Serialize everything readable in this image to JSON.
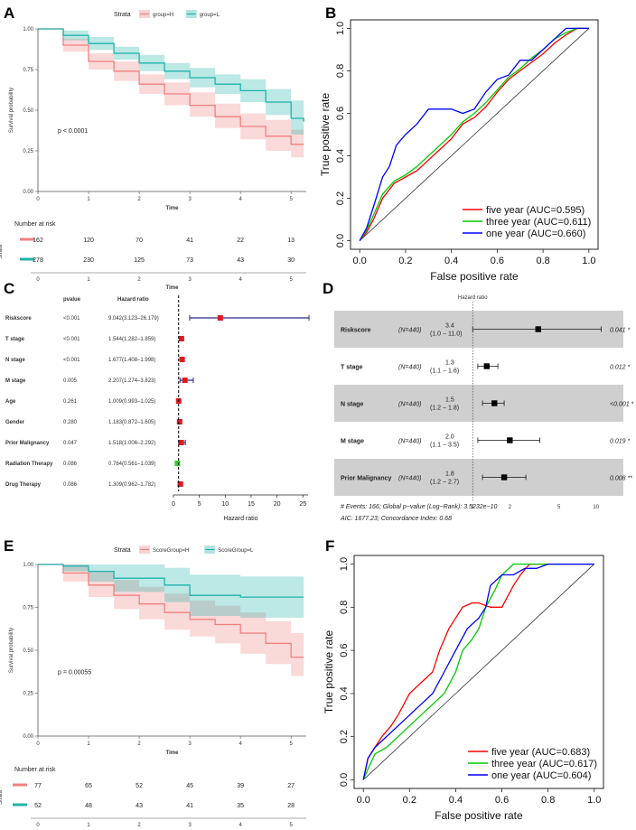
{
  "panels": {
    "A": "A",
    "B": "B",
    "C": "C",
    "D": "D",
    "E": "E",
    "F": "F"
  },
  "chart_data": [
    {
      "id": "A",
      "type": "line",
      "subtype": "kaplan-meier",
      "legend_title": "Strata",
      "series": [
        {
          "name": "group=H",
          "color": "#f08080",
          "x": [
            0,
            0.5,
            1,
            1.5,
            2,
            2.5,
            3,
            3.5,
            4,
            4.5,
            5,
            5.25
          ],
          "y": [
            1.0,
            0.9,
            0.8,
            0.74,
            0.66,
            0.6,
            0.53,
            0.46,
            0.4,
            0.34,
            0.29,
            0.29
          ],
          "ci_low": [
            1.0,
            0.86,
            0.75,
            0.68,
            0.6,
            0.53,
            0.46,
            0.39,
            0.32,
            0.25,
            0.21,
            0.21
          ],
          "ci_high": [
            1.0,
            0.94,
            0.85,
            0.8,
            0.72,
            0.67,
            0.61,
            0.54,
            0.48,
            0.44,
            0.38,
            0.38
          ]
        },
        {
          "name": "group=L",
          "color": "#20b2aa",
          "x": [
            0,
            0.5,
            1,
            1.5,
            2,
            2.5,
            3,
            3.5,
            4,
            4.5,
            5,
            5.25
          ],
          "y": [
            1.0,
            0.96,
            0.91,
            0.85,
            0.79,
            0.74,
            0.7,
            0.66,
            0.62,
            0.55,
            0.45,
            0.43
          ],
          "ci_low": [
            1.0,
            0.93,
            0.87,
            0.81,
            0.74,
            0.69,
            0.64,
            0.6,
            0.55,
            0.47,
            0.35,
            0.33
          ],
          "ci_high": [
            1.0,
            0.99,
            0.95,
            0.89,
            0.84,
            0.79,
            0.76,
            0.72,
            0.69,
            0.63,
            0.56,
            0.53
          ]
        }
      ],
      "xlabel": "Time",
      "ylabel": "Survival probability",
      "xticks": [
        "0",
        "1",
        "2",
        "3",
        "4",
        "5"
      ],
      "yticks": [
        "0.00",
        "0.25",
        "0.50",
        "0.75",
        "1.00"
      ],
      "xlim": [
        0,
        5.3
      ],
      "ylim": [
        0,
        1
      ],
      "pvalue": "p < 0.0001",
      "risk_title": "Number at risk",
      "risk_ylabel": "Strata",
      "risk_rows": [
        [
          "162",
          "120",
          "70",
          "41",
          "22",
          "13"
        ],
        [
          "278",
          "230",
          "125",
          "73",
          "43",
          "30"
        ]
      ],
      "risk_xticks": [
        "0",
        "1",
        "2",
        "3",
        "4",
        "5"
      ],
      "risk_xlabel": "Time"
    },
    {
      "id": "B",
      "type": "line",
      "subtype": "roc",
      "xlabel": "False positive rate",
      "ylabel": "True positive rate",
      "xticks": [
        "0.0",
        "0.2",
        "0.4",
        "0.6",
        "0.8",
        "1.0"
      ],
      "yticks": [
        "0.0",
        "0.2",
        "0.4",
        "0.6",
        "0.8",
        "1.0"
      ],
      "xlim": [
        0,
        1
      ],
      "ylim": [
        0,
        1
      ],
      "series": [
        {
          "name": "five year (AUC=0.595)",
          "color": "#ff0000",
          "x": [
            0,
            0.03,
            0.06,
            0.1,
            0.15,
            0.2,
            0.25,
            0.3,
            0.35,
            0.4,
            0.45,
            0.5,
            0.55,
            0.6,
            0.65,
            0.7,
            0.75,
            0.8,
            0.85,
            0.9,
            0.95,
            1.0
          ],
          "y": [
            0,
            0.04,
            0.1,
            0.2,
            0.27,
            0.3,
            0.33,
            0.38,
            0.43,
            0.48,
            0.55,
            0.58,
            0.63,
            0.7,
            0.76,
            0.8,
            0.84,
            0.88,
            0.93,
            0.97,
            1.0,
            1.0
          ]
        },
        {
          "name": "three year (AUC=0.611)",
          "color": "#00cc00",
          "x": [
            0,
            0.03,
            0.06,
            0.1,
            0.15,
            0.2,
            0.25,
            0.3,
            0.35,
            0.4,
            0.45,
            0.5,
            0.55,
            0.6,
            0.65,
            0.7,
            0.75,
            0.8,
            0.85,
            0.9,
            0.95,
            1.0
          ],
          "y": [
            0,
            0.05,
            0.12,
            0.22,
            0.28,
            0.31,
            0.35,
            0.4,
            0.45,
            0.5,
            0.56,
            0.6,
            0.65,
            0.71,
            0.77,
            0.81,
            0.86,
            0.9,
            0.95,
            0.98,
            1.0,
            1.0
          ]
        },
        {
          "name": "one year (AUC=0.660)",
          "color": "#0000ff",
          "x": [
            0,
            0.03,
            0.06,
            0.1,
            0.13,
            0.16,
            0.2,
            0.25,
            0.3,
            0.35,
            0.4,
            0.45,
            0.5,
            0.55,
            0.6,
            0.65,
            0.7,
            0.75,
            0.8,
            0.85,
            0.9,
            0.95,
            1.0
          ],
          "y": [
            0,
            0.06,
            0.16,
            0.3,
            0.35,
            0.45,
            0.5,
            0.55,
            0.62,
            0.62,
            0.62,
            0.6,
            0.62,
            0.7,
            0.76,
            0.78,
            0.85,
            0.85,
            0.9,
            0.95,
            1.0,
            1.0,
            1.0
          ]
        }
      ]
    },
    {
      "id": "C",
      "type": "forest",
      "col_pvalue": "pvalue",
      "col_hr": "Hazard ratio",
      "xlabel": "Hazard ratio",
      "xticks": [
        0,
        5,
        10,
        15,
        20,
        25
      ],
      "xlim": [
        0,
        26
      ],
      "ref_line": 1,
      "rows": [
        {
          "label": "Riskscore",
          "pvalue": "<0.001",
          "hr_text": "9.042(3.123–26.179)",
          "hr": 9.042,
          "lo": 3.123,
          "hi": 26.179,
          "color": "#e31a1c"
        },
        {
          "label": "T stage",
          "pvalue": "<0.001",
          "hr_text": "1.544(1.282–1.859)",
          "hr": 1.544,
          "lo": 1.282,
          "hi": 1.859,
          "color": "#e31a1c"
        },
        {
          "label": "N stage",
          "pvalue": "<0.001",
          "hr_text": "1.677(1.408–1.998)",
          "hr": 1.677,
          "lo": 1.408,
          "hi": 1.998,
          "color": "#e31a1c"
        },
        {
          "label": "M stage",
          "pvalue": "0.005",
          "hr_text": "2.207(1.274–3.823)",
          "hr": 2.207,
          "lo": 1.274,
          "hi": 3.823,
          "color": "#e31a1c"
        },
        {
          "label": "Age",
          "pvalue": "0.261",
          "hr_text": "1.009(0.993–1.025)",
          "hr": 1.009,
          "lo": 0.993,
          "hi": 1.025,
          "color": "#e31a1c"
        },
        {
          "label": "Gender",
          "pvalue": "0.280",
          "hr_text": "1.183(0.872–1.605)",
          "hr": 1.183,
          "lo": 0.872,
          "hi": 1.605,
          "color": "#e31a1c"
        },
        {
          "label": "Prior Malignancy",
          "pvalue": "0.047",
          "hr_text": "1.518(1.006–2.292)",
          "hr": 1.518,
          "lo": 1.006,
          "hi": 2.292,
          "color": "#e31a1c"
        },
        {
          "label": "Radiation Therapy",
          "pvalue": "0.086",
          "hr_text": "0.764(0.561–1.039)",
          "hr": 0.764,
          "lo": 0.561,
          "hi": 1.039,
          "color": "#33cc33"
        },
        {
          "label": "Drug Therapy",
          "pvalue": "0.086",
          "hr_text": "1.309(0.962–1.782)",
          "hr": 1.309,
          "lo": 0.962,
          "hi": 1.782,
          "color": "#e31a1c"
        }
      ]
    },
    {
      "id": "D",
      "type": "forest",
      "scale": "log",
      "title": "Hazard ratio",
      "xticks": [
        "1",
        "2",
        "5",
        "10"
      ],
      "rows": [
        {
          "label": "Riskscore",
          "n": "(N=440)",
          "hr_main": "3.4",
          "hr_ci": "(1.0 − 11.0)",
          "hr": 3.4,
          "lo": 1.0,
          "hi": 11.0,
          "p": "0.041 *",
          "shaded": true
        },
        {
          "label": "T stage",
          "n": "(N=440)",
          "hr_main": "1.3",
          "hr_ci": "(1.1 − 1.6)",
          "hr": 1.3,
          "lo": 1.1,
          "hi": 1.6,
          "p": "0.012 *",
          "shaded": false
        },
        {
          "label": "N stage",
          "n": "(N=440)",
          "hr_main": "1.5",
          "hr_ci": "(1.2 − 1.8)",
          "hr": 1.5,
          "lo": 1.2,
          "hi": 1.8,
          "p": "<0.001 *",
          "shaded": true
        },
        {
          "label": "M stage",
          "n": "(N=440)",
          "hr_main": "2.0",
          "hr_ci": "(1.1 − 3.5)",
          "hr": 2.0,
          "lo": 1.1,
          "hi": 3.5,
          "p": "0.019 *",
          "shaded": false
        },
        {
          "label": "Prior Malignancy",
          "n": "(N=440)",
          "hr_main": "1.8",
          "hr_ci": "(1.2 − 2.7)",
          "hr": 1.8,
          "lo": 1.2,
          "hi": 2.7,
          "p": "0.008 **",
          "shaded": true
        }
      ],
      "footer1": "# Events: 166; Global p−value (Log−Rank): 3.5232e−10",
      "footer2": "AIC: 1677.23; Concordance Index: 0.68"
    },
    {
      "id": "E",
      "type": "line",
      "subtype": "kaplan-meier",
      "legend_title": "Strata",
      "series": [
        {
          "name": "ScoreGroup=H",
          "color": "#f08080",
          "x": [
            0,
            0.5,
            1,
            1.5,
            2,
            2.5,
            3,
            3.5,
            4,
            4.5,
            5,
            5.25
          ],
          "y": [
            1.0,
            0.95,
            0.88,
            0.82,
            0.77,
            0.72,
            0.68,
            0.65,
            0.6,
            0.54,
            0.46,
            0.46
          ],
          "ci_low": [
            1.0,
            0.9,
            0.81,
            0.74,
            0.68,
            0.62,
            0.58,
            0.54,
            0.48,
            0.42,
            0.35,
            0.35
          ],
          "ci_high": [
            1.0,
            1.0,
            0.96,
            0.91,
            0.87,
            0.83,
            0.79,
            0.76,
            0.72,
            0.67,
            0.6,
            0.6
          ]
        },
        {
          "name": "ScoreGroup=L",
          "color": "#20b2aa",
          "x": [
            0,
            0.5,
            1,
            1.5,
            2,
            2.5,
            3,
            3.5,
            4,
            4.5,
            5,
            5.25
          ],
          "y": [
            1.0,
            0.99,
            0.96,
            0.92,
            0.92,
            0.88,
            0.82,
            0.82,
            0.81,
            0.81,
            0.81,
            0.81
          ],
          "ci_low": [
            1.0,
            0.96,
            0.9,
            0.84,
            0.84,
            0.78,
            0.7,
            0.7,
            0.69,
            0.69,
            0.69,
            0.69
          ],
          "ci_high": [
            1.0,
            1.0,
            1.0,
            1.0,
            1.0,
            0.98,
            0.94,
            0.94,
            0.93,
            0.93,
            0.93,
            0.93
          ]
        }
      ],
      "xlabel": "Time",
      "ylabel": "Survival probability",
      "xticks": [
        "0",
        "1",
        "2",
        "3",
        "4",
        "5"
      ],
      "yticks": [
        "0.00",
        "0.25",
        "0.50",
        "0.75",
        "1.00"
      ],
      "xlim": [
        0,
        5.3
      ],
      "ylim": [
        0,
        1
      ],
      "pvalue": "p = 0.00055",
      "risk_title": "Number at risk",
      "risk_ylabel": "Strata",
      "risk_rows": [
        [
          "77",
          "65",
          "52",
          "45",
          "39",
          "27"
        ],
        [
          "52",
          "48",
          "43",
          "41",
          "35",
          "28"
        ]
      ],
      "risk_xticks": [
        "0",
        "1",
        "2",
        "3",
        "4",
        "5"
      ],
      "risk_xlabel": "Time"
    },
    {
      "id": "F",
      "type": "line",
      "subtype": "roc",
      "xlabel": "False positive rate",
      "ylabel": "True positive rate",
      "xticks": [
        "0.0",
        "0.2",
        "0.4",
        "0.6",
        "0.8",
        "1.0"
      ],
      "yticks": [
        "0.0",
        "0.2",
        "0.4",
        "0.6",
        "0.8",
        "1.0"
      ],
      "xlim": [
        0,
        1
      ],
      "ylim": [
        0,
        1
      ],
      "series": [
        {
          "name": "five year (AUC=0.683)",
          "color": "#ff0000",
          "x": [
            0,
            0.02,
            0.05,
            0.08,
            0.12,
            0.15,
            0.2,
            0.25,
            0.3,
            0.33,
            0.37,
            0.4,
            0.43,
            0.47,
            0.5,
            0.55,
            0.6,
            0.65,
            0.68,
            0.72,
            0.75,
            0.8,
            0.9,
            1.0
          ],
          "y": [
            0,
            0.1,
            0.15,
            0.2,
            0.25,
            0.3,
            0.4,
            0.45,
            0.5,
            0.6,
            0.7,
            0.75,
            0.8,
            0.82,
            0.82,
            0.8,
            0.8,
            0.9,
            0.95,
            1.0,
            1.0,
            1.0,
            1.0,
            1.0
          ]
        },
        {
          "name": "three year (AUC=0.617)",
          "color": "#00cc00",
          "x": [
            0,
            0.02,
            0.05,
            0.1,
            0.15,
            0.2,
            0.25,
            0.3,
            0.35,
            0.4,
            0.43,
            0.47,
            0.5,
            0.53,
            0.57,
            0.6,
            0.65,
            0.68,
            0.72,
            0.75,
            0.8,
            0.9,
            1.0
          ],
          "y": [
            0,
            0.05,
            0.12,
            0.15,
            0.2,
            0.25,
            0.3,
            0.35,
            0.4,
            0.5,
            0.6,
            0.65,
            0.7,
            0.8,
            0.88,
            0.95,
            1.0,
            1.0,
            1.0,
            1.0,
            1.0,
            1.0,
            1.0
          ]
        },
        {
          "name": "one year (AUC=0.604)",
          "color": "#0000ff",
          "x": [
            0,
            0.02,
            0.05,
            0.08,
            0.12,
            0.15,
            0.2,
            0.25,
            0.3,
            0.35,
            0.4,
            0.45,
            0.5,
            0.53,
            0.55,
            0.6,
            0.65,
            0.7,
            0.75,
            0.8,
            0.9,
            1.0
          ],
          "y": [
            0,
            0.1,
            0.15,
            0.18,
            0.22,
            0.25,
            0.3,
            0.35,
            0.4,
            0.5,
            0.6,
            0.7,
            0.75,
            0.8,
            0.9,
            0.95,
            0.95,
            0.98,
            0.98,
            1.0,
            1.0,
            1.0
          ]
        }
      ]
    }
  ]
}
